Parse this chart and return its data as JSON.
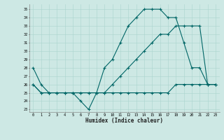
{
  "xlabel": "Humidex (Indice chaleur)",
  "bg_color": "#cde8e4",
  "line_color": "#006666",
  "grid_color": "#aad4ce",
  "x_values": [
    0,
    1,
    2,
    3,
    4,
    5,
    6,
    7,
    8,
    9,
    10,
    11,
    12,
    13,
    14,
    15,
    16,
    17,
    18,
    19,
    20,
    21,
    22,
    23
  ],
  "line1": [
    28,
    26,
    25,
    25,
    25,
    25,
    24,
    23,
    25,
    28,
    29,
    31,
    33,
    34,
    35,
    35,
    35,
    34,
    34,
    31,
    28,
    28,
    26,
    26
  ],
  "line2": [
    26,
    25,
    25,
    25,
    25,
    25,
    25,
    25,
    25,
    25,
    25,
    25,
    25,
    25,
    25,
    25,
    25,
    25,
    26,
    26,
    26,
    26,
    26,
    26
  ],
  "line3": [
    26,
    25,
    25,
    25,
    25,
    25,
    25,
    25,
    25,
    25,
    26,
    27,
    28,
    29,
    30,
    31,
    32,
    32,
    33,
    33,
    33,
    33,
    26,
    26
  ],
  "yticks": [
    23,
    24,
    25,
    26,
    27,
    28,
    29,
    30,
    31,
    32,
    33,
    34,
    35
  ],
  "xticks": [
    0,
    1,
    2,
    3,
    4,
    5,
    6,
    7,
    8,
    9,
    10,
    11,
    12,
    13,
    14,
    15,
    16,
    17,
    18,
    19,
    20,
    21,
    22,
    23
  ],
  "xlim": [
    -0.5,
    23.5
  ],
  "ylim": [
    22.7,
    35.6
  ]
}
